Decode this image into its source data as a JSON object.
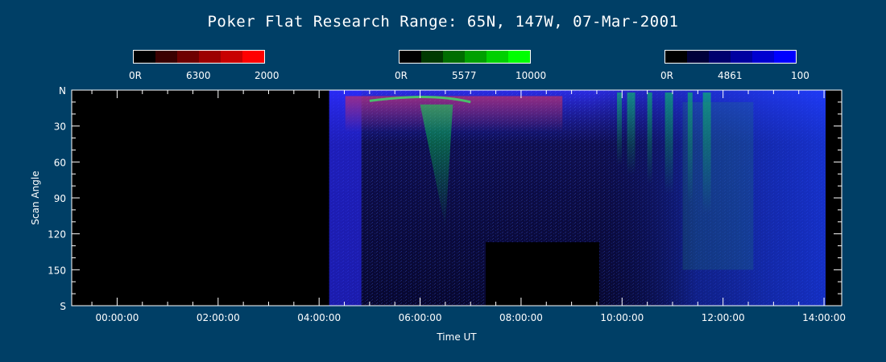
{
  "chart_data": {
    "type": "heatmap",
    "title": "Poker Flat Research Range: 65N, 147W, 07-Mar-2001",
    "xlabel": "Time UT",
    "ylabel": "Scan Angle",
    "x_ticks": [
      "00:00:00",
      "02:00:00",
      "04:00:00",
      "06:00:00",
      "08:00:00",
      "10:00:00",
      "12:00:00",
      "14:00:00"
    ],
    "x_tick_hours": [
      0,
      2,
      4,
      6,
      8,
      10,
      12,
      14
    ],
    "xlim_hours": [
      -0.9,
      14.35
    ],
    "y_ticks": [
      "N",
      "30",
      "60",
      "90",
      "120",
      "150",
      "S"
    ],
    "y_tick_values": [
      0,
      30,
      60,
      90,
      120,
      150,
      180
    ],
    "ylim": [
      0,
      180
    ],
    "data_start_hour": 4.2,
    "data_gap_hours": [
      7.3,
      9.55
    ],
    "data_gap_angle_start": 127,
    "colorbars": [
      {
        "name": "6300",
        "min_label": "0R",
        "max_label": "2000",
        "colors": [
          "#000000",
          "#3a0000",
          "#6e0000",
          "#9c0000",
          "#c80000",
          "#ff0000"
        ]
      },
      {
        "name": "5577",
        "min_label": "0R",
        "max_label": "10000",
        "colors": [
          "#000000",
          "#003a00",
          "#006e00",
          "#00a000",
          "#00d000",
          "#00ff00"
        ]
      },
      {
        "name": "4861",
        "min_label": "0R",
        "max_label": "100",
        "colors": [
          "#000000",
          "#00003a",
          "#00006e",
          "#0000a0",
          "#0000d0",
          "#0000ff"
        ]
      }
    ]
  },
  "colors": {
    "background": "#003F66",
    "axes": "#ffffff"
  }
}
